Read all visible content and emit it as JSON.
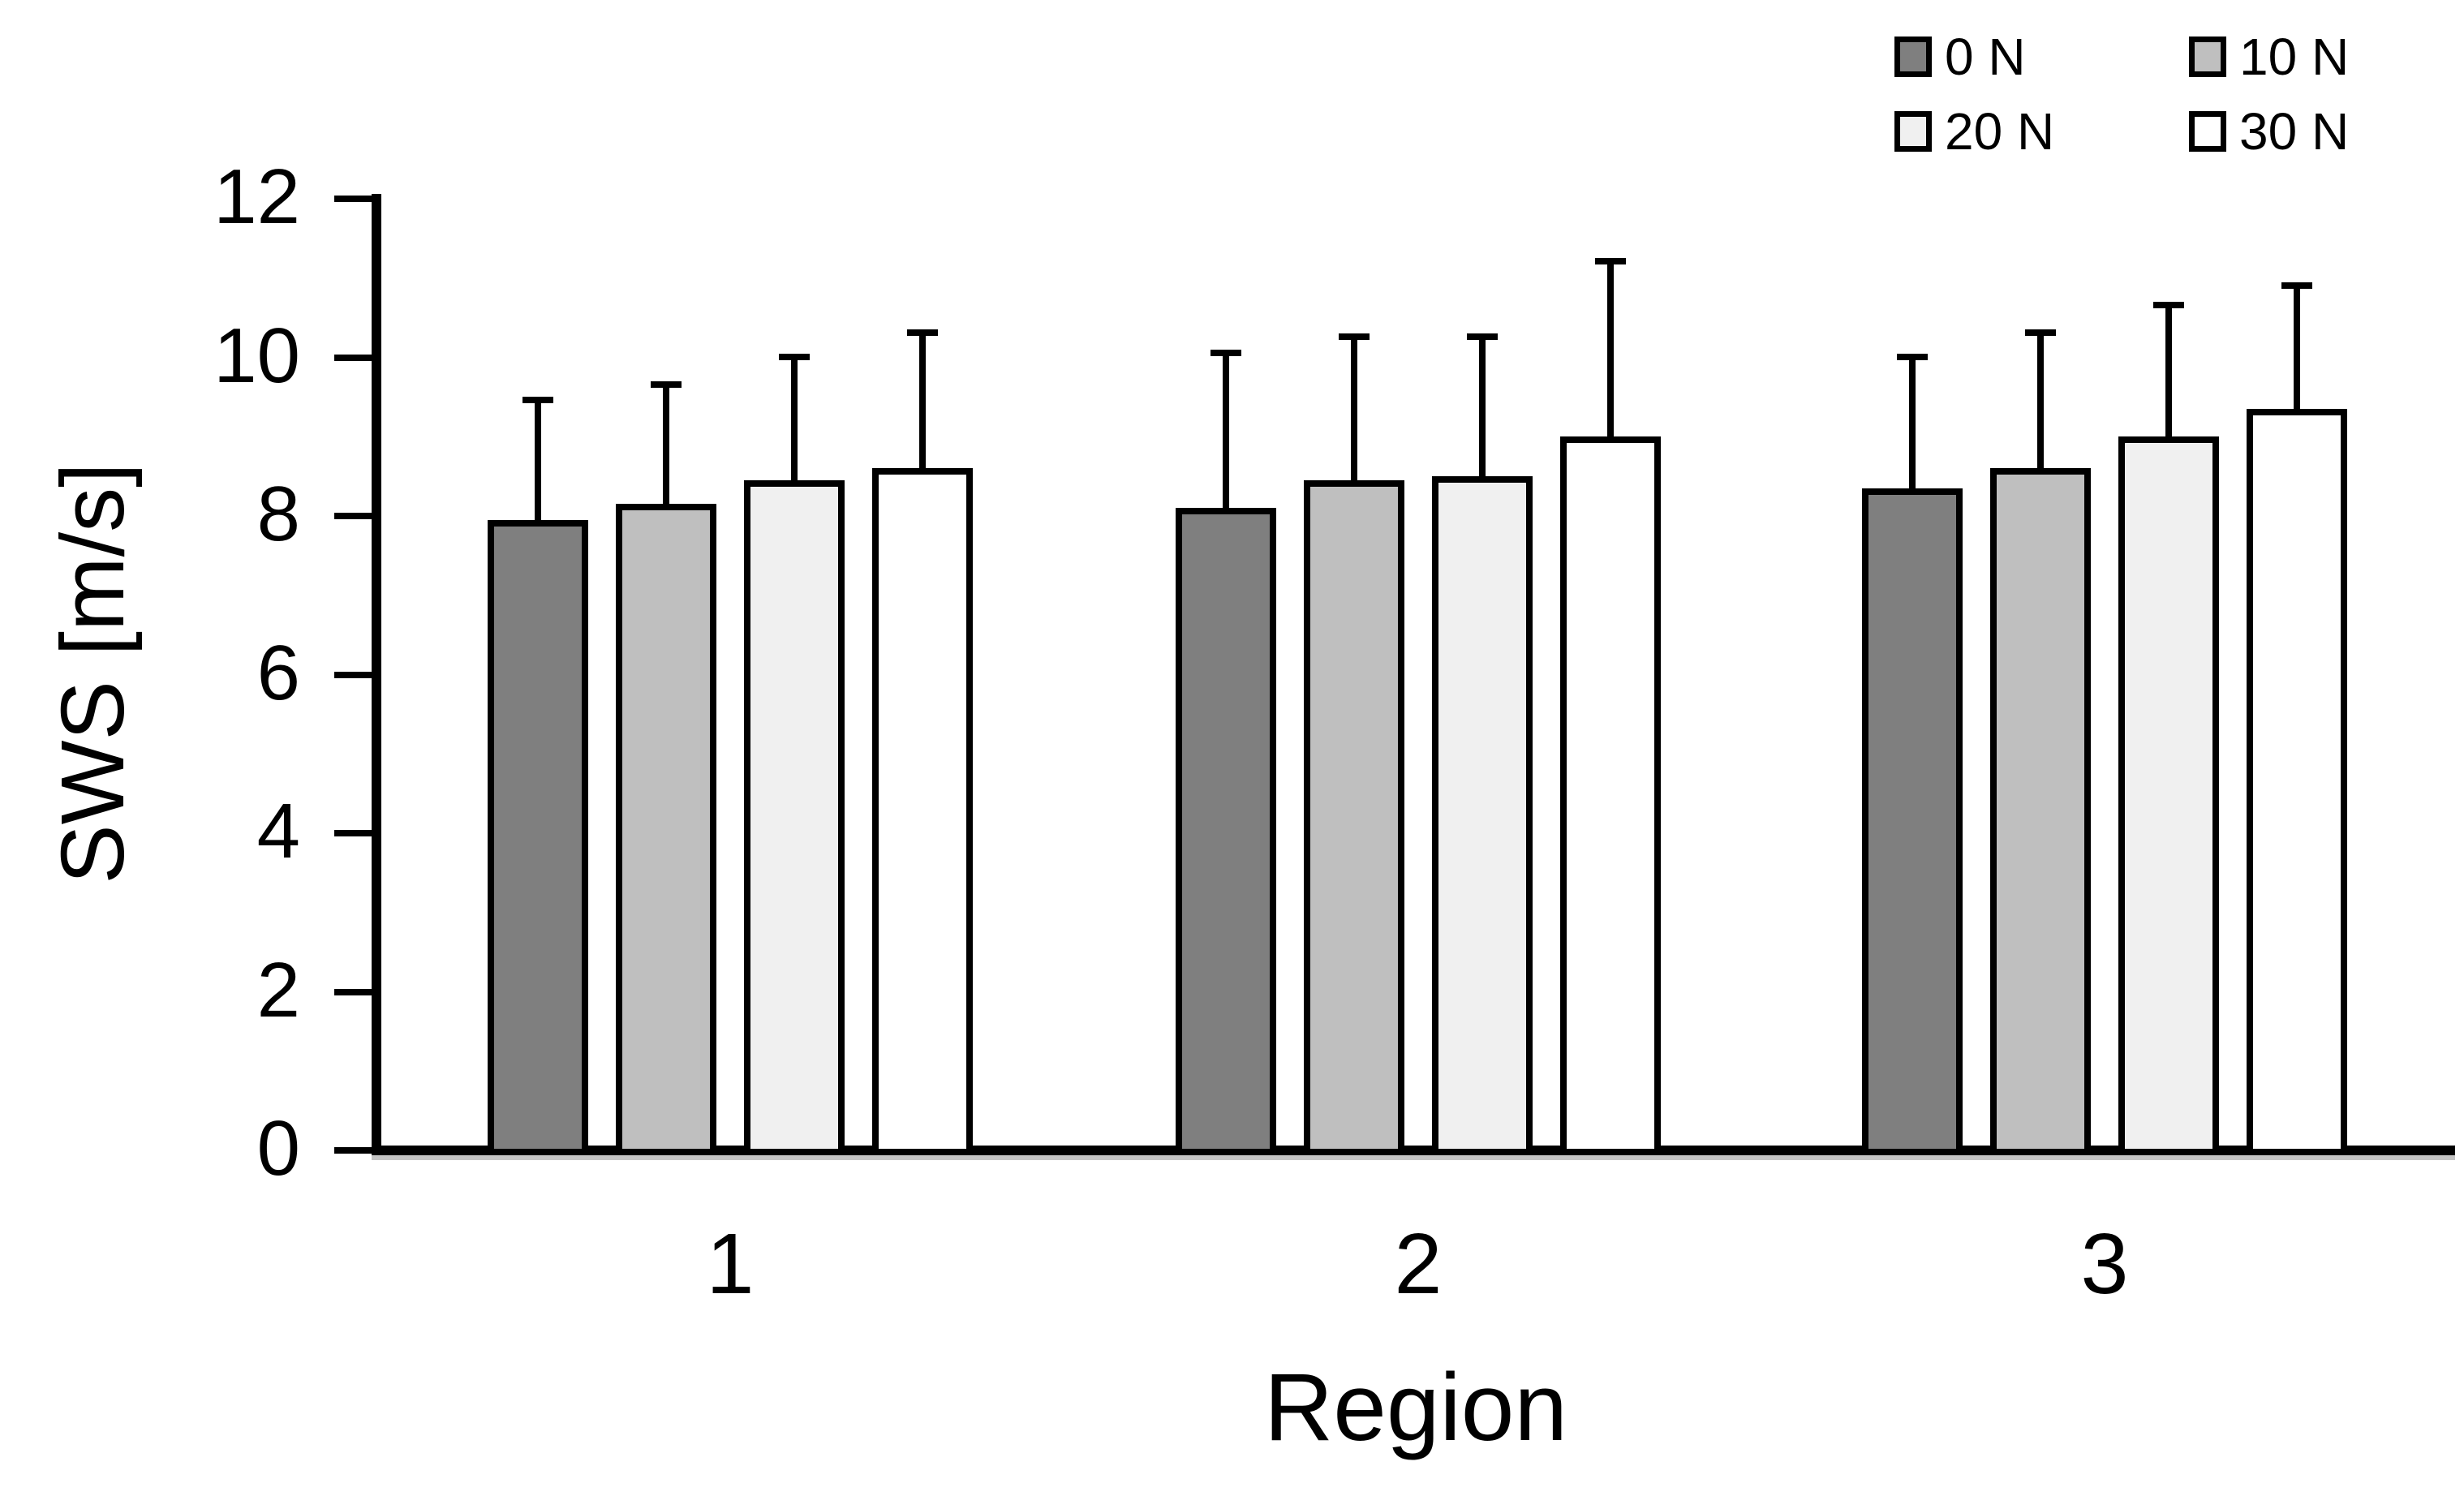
{
  "chart_data": {
    "type": "bar",
    "title": "",
    "xlabel": "Region",
    "ylabel": "SWS [m/s]",
    "categories": [
      "1",
      "2",
      "3"
    ],
    "series": [
      {
        "name": "0 N",
        "fill": "#7f7f7f",
        "values": [
          7.95,
          8.1,
          8.35
        ],
        "errors_upper": [
          1.55,
          2.0,
          1.7
        ]
      },
      {
        "name": "10 N",
        "fill": "#bfbfbf",
        "values": [
          8.15,
          8.45,
          8.6
        ],
        "errors_upper": [
          1.55,
          1.85,
          1.75
        ]
      },
      {
        "name": "20 N",
        "fill": "#f0f0f0",
        "values": [
          8.45,
          8.5,
          9.0
        ],
        "errors_upper": [
          1.6,
          1.8,
          1.7
        ]
      },
      {
        "name": "30 N",
        "fill": "#ffffff",
        "values": [
          8.6,
          9.0,
          9.35
        ],
        "errors_upper": [
          1.75,
          2.25,
          1.6
        ]
      }
    ],
    "ylim": [
      0,
      12
    ],
    "ytick_step": 2,
    "yticks": [
      0,
      2,
      4,
      6,
      8,
      10,
      12
    ],
    "grid": false,
    "legend_position": "top-right",
    "error_bars": "upper-only",
    "axis_color": "#000000",
    "bar_border_color": "#000000",
    "error_bar_color": "#000000",
    "background_color": "#ffffff"
  }
}
